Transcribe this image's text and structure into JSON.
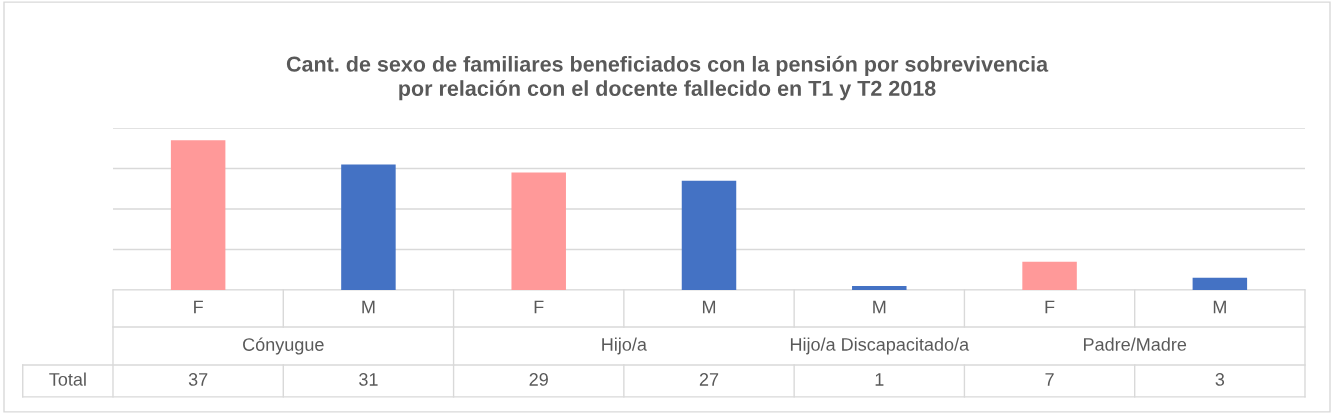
{
  "chart_data": {
    "type": "bar",
    "title": "Cant. de sexo de familiares beneficiados con la pensión por sobrevivencia\npor relación con el docente fallecido en T1 y T2 2018",
    "categories": [
      "F",
      "M",
      "F",
      "M",
      "M",
      "F",
      "M"
    ],
    "series": [
      {
        "name": "Total",
        "colors": [
          "#ff9999",
          "#4472c4",
          "#ff9999",
          "#4472c4",
          "#4472c4",
          "#ff9999",
          "#4472c4"
        ],
        "values": [
          37,
          31,
          29,
          27,
          1,
          7,
          3
        ]
      }
    ],
    "annotations": [
      "Cónyugue",
      "Hijo/a",
      "Hijo/a Discapacitado/a",
      "Padre/Madre"
    ],
    "ylim": [
      0,
      40
    ],
    "yticks": [
      {
        "value": 0,
        "label": null
      },
      {
        "value": 10,
        "label": null
      },
      {
        "value": 20,
        "label": null
      },
      {
        "value": 30,
        "label": null
      },
      {
        "value": 40,
        "label": null
      }
    ],
    "grid": "y",
    "tick_labels": "x",
    "data_labels": true,
    "legend": false
  }
}
